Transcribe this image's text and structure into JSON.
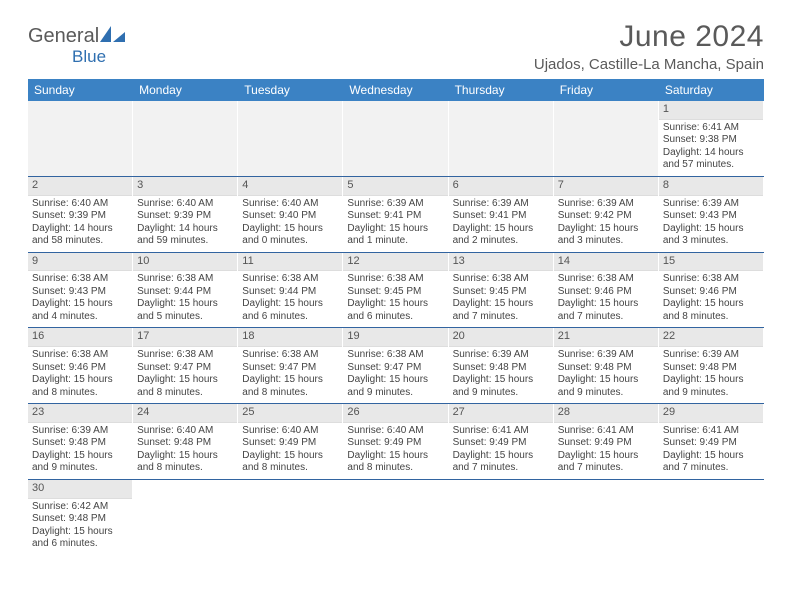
{
  "brand": {
    "name1": "General",
    "name2": "Blue"
  },
  "title": "June 2024",
  "location": "Ujados, Castille-La Mancha, Spain",
  "colors": {
    "header_bg": "#3b82c4",
    "header_fg": "#ffffff",
    "week_divider": "#3264a0",
    "daynum_bg": "#e8e8e8",
    "empty_bg": "#f2f2f2",
    "text": "#444444",
    "title_color": "#5a5a5a",
    "brand_blue": "#2f6fb0"
  },
  "weekdays": [
    "Sunday",
    "Monday",
    "Tuesday",
    "Wednesday",
    "Thursday",
    "Friday",
    "Saturday"
  ],
  "weeks": [
    [
      {
        "n": "",
        "lines": []
      },
      {
        "n": "",
        "lines": []
      },
      {
        "n": "",
        "lines": []
      },
      {
        "n": "",
        "lines": []
      },
      {
        "n": "",
        "lines": []
      },
      {
        "n": "",
        "lines": []
      },
      {
        "n": "1",
        "lines": [
          "Sunrise: 6:41 AM",
          "Sunset: 9:38 PM",
          "Daylight: 14 hours",
          "and 57 minutes."
        ]
      }
    ],
    [
      {
        "n": "2",
        "lines": [
          "Sunrise: 6:40 AM",
          "Sunset: 9:39 PM",
          "Daylight: 14 hours",
          "and 58 minutes."
        ]
      },
      {
        "n": "3",
        "lines": [
          "Sunrise: 6:40 AM",
          "Sunset: 9:39 PM",
          "Daylight: 14 hours",
          "and 59 minutes."
        ]
      },
      {
        "n": "4",
        "lines": [
          "Sunrise: 6:40 AM",
          "Sunset: 9:40 PM",
          "Daylight: 15 hours",
          "and 0 minutes."
        ]
      },
      {
        "n": "5",
        "lines": [
          "Sunrise: 6:39 AM",
          "Sunset: 9:41 PM",
          "Daylight: 15 hours",
          "and 1 minute."
        ]
      },
      {
        "n": "6",
        "lines": [
          "Sunrise: 6:39 AM",
          "Sunset: 9:41 PM",
          "Daylight: 15 hours",
          "and 2 minutes."
        ]
      },
      {
        "n": "7",
        "lines": [
          "Sunrise: 6:39 AM",
          "Sunset: 9:42 PM",
          "Daylight: 15 hours",
          "and 3 minutes."
        ]
      },
      {
        "n": "8",
        "lines": [
          "Sunrise: 6:39 AM",
          "Sunset: 9:43 PM",
          "Daylight: 15 hours",
          "and 3 minutes."
        ]
      }
    ],
    [
      {
        "n": "9",
        "lines": [
          "Sunrise: 6:38 AM",
          "Sunset: 9:43 PM",
          "Daylight: 15 hours",
          "and 4 minutes."
        ]
      },
      {
        "n": "10",
        "lines": [
          "Sunrise: 6:38 AM",
          "Sunset: 9:44 PM",
          "Daylight: 15 hours",
          "and 5 minutes."
        ]
      },
      {
        "n": "11",
        "lines": [
          "Sunrise: 6:38 AM",
          "Sunset: 9:44 PM",
          "Daylight: 15 hours",
          "and 6 minutes."
        ]
      },
      {
        "n": "12",
        "lines": [
          "Sunrise: 6:38 AM",
          "Sunset: 9:45 PM",
          "Daylight: 15 hours",
          "and 6 minutes."
        ]
      },
      {
        "n": "13",
        "lines": [
          "Sunrise: 6:38 AM",
          "Sunset: 9:45 PM",
          "Daylight: 15 hours",
          "and 7 minutes."
        ]
      },
      {
        "n": "14",
        "lines": [
          "Sunrise: 6:38 AM",
          "Sunset: 9:46 PM",
          "Daylight: 15 hours",
          "and 7 minutes."
        ]
      },
      {
        "n": "15",
        "lines": [
          "Sunrise: 6:38 AM",
          "Sunset: 9:46 PM",
          "Daylight: 15 hours",
          "and 8 minutes."
        ]
      }
    ],
    [
      {
        "n": "16",
        "lines": [
          "Sunrise: 6:38 AM",
          "Sunset: 9:46 PM",
          "Daylight: 15 hours",
          "and 8 minutes."
        ]
      },
      {
        "n": "17",
        "lines": [
          "Sunrise: 6:38 AM",
          "Sunset: 9:47 PM",
          "Daylight: 15 hours",
          "and 8 minutes."
        ]
      },
      {
        "n": "18",
        "lines": [
          "Sunrise: 6:38 AM",
          "Sunset: 9:47 PM",
          "Daylight: 15 hours",
          "and 8 minutes."
        ]
      },
      {
        "n": "19",
        "lines": [
          "Sunrise: 6:38 AM",
          "Sunset: 9:47 PM",
          "Daylight: 15 hours",
          "and 9 minutes."
        ]
      },
      {
        "n": "20",
        "lines": [
          "Sunrise: 6:39 AM",
          "Sunset: 9:48 PM",
          "Daylight: 15 hours",
          "and 9 minutes."
        ]
      },
      {
        "n": "21",
        "lines": [
          "Sunrise: 6:39 AM",
          "Sunset: 9:48 PM",
          "Daylight: 15 hours",
          "and 9 minutes."
        ]
      },
      {
        "n": "22",
        "lines": [
          "Sunrise: 6:39 AM",
          "Sunset: 9:48 PM",
          "Daylight: 15 hours",
          "and 9 minutes."
        ]
      }
    ],
    [
      {
        "n": "23",
        "lines": [
          "Sunrise: 6:39 AM",
          "Sunset: 9:48 PM",
          "Daylight: 15 hours",
          "and 9 minutes."
        ]
      },
      {
        "n": "24",
        "lines": [
          "Sunrise: 6:40 AM",
          "Sunset: 9:48 PM",
          "Daylight: 15 hours",
          "and 8 minutes."
        ]
      },
      {
        "n": "25",
        "lines": [
          "Sunrise: 6:40 AM",
          "Sunset: 9:49 PM",
          "Daylight: 15 hours",
          "and 8 minutes."
        ]
      },
      {
        "n": "26",
        "lines": [
          "Sunrise: 6:40 AM",
          "Sunset: 9:49 PM",
          "Daylight: 15 hours",
          "and 8 minutes."
        ]
      },
      {
        "n": "27",
        "lines": [
          "Sunrise: 6:41 AM",
          "Sunset: 9:49 PM",
          "Daylight: 15 hours",
          "and 7 minutes."
        ]
      },
      {
        "n": "28",
        "lines": [
          "Sunrise: 6:41 AM",
          "Sunset: 9:49 PM",
          "Daylight: 15 hours",
          "and 7 minutes."
        ]
      },
      {
        "n": "29",
        "lines": [
          "Sunrise: 6:41 AM",
          "Sunset: 9:49 PM",
          "Daylight: 15 hours",
          "and 7 minutes."
        ]
      }
    ],
    [
      {
        "n": "30",
        "lines": [
          "Sunrise: 6:42 AM",
          "Sunset: 9:48 PM",
          "Daylight: 15 hours",
          "and 6 minutes."
        ]
      },
      {
        "n": "",
        "lines": []
      },
      {
        "n": "",
        "lines": []
      },
      {
        "n": "",
        "lines": []
      },
      {
        "n": "",
        "lines": []
      },
      {
        "n": "",
        "lines": []
      },
      {
        "n": "",
        "lines": []
      }
    ]
  ]
}
